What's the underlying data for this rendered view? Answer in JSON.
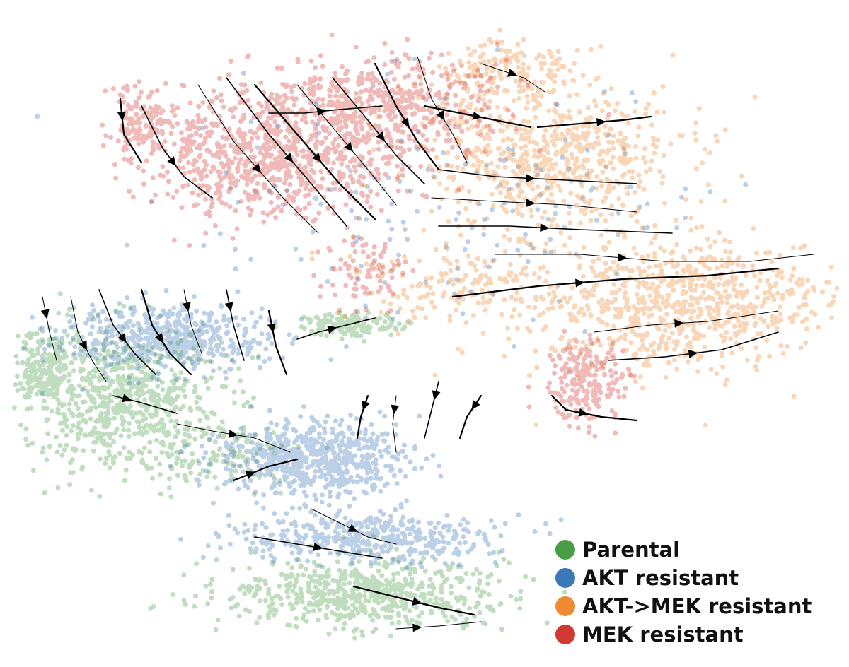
{
  "chart_data": {
    "type": "scatter",
    "subtype": "velocity-streamline embedding",
    "title": "",
    "xlabel": "",
    "ylabel": "",
    "axes_visible": false,
    "grid": false,
    "legend_position": "bottom-right",
    "point_alpha": 0.35,
    "streamlines": {
      "color": "#000000",
      "arrowheads": true
    },
    "series": [
      {
        "name": "Parental",
        "color": "#4a9e47",
        "regions": [
          {
            "label": "lower-left band",
            "center": [
              170,
              560
            ],
            "spread": [
              120,
              80
            ],
            "weight": 0.4
          },
          {
            "label": "bottom band",
            "center": [
              520,
              840
            ],
            "spread": [
              170,
              40
            ],
            "weight": 0.35
          },
          {
            "label": "left tip",
            "center": [
              60,
              520
            ],
            "spread": [
              35,
              40
            ],
            "weight": 0.1
          },
          {
            "label": "bridge",
            "center": [
              500,
              460
            ],
            "spread": [
              60,
              15
            ],
            "weight": 0.08
          },
          {
            "label": "mid strand",
            "center": [
              300,
              640
            ],
            "spread": [
              110,
              40
            ],
            "weight": 0.07
          }
        ]
      },
      {
        "name": "AKT resistant",
        "color": "#3b78b8",
        "regions": [
          {
            "label": "upper-left strip",
            "center": [
              230,
              480
            ],
            "spread": [
              120,
              40
            ],
            "weight": 0.3
          },
          {
            "label": "diagonal strand",
            "center": [
              440,
              650
            ],
            "spread": [
              110,
              45
            ],
            "weight": 0.35
          },
          {
            "label": "lower strand",
            "center": [
              520,
              760
            ],
            "spread": [
              150,
              30
            ],
            "weight": 0.25
          },
          {
            "label": "scattered",
            "center": [
              650,
              300
            ],
            "spread": [
              300,
              150
            ],
            "weight": 0.1
          }
        ]
      },
      {
        "name": "AKT->MEK resistant",
        "color": "#ef8a32",
        "regions": [
          {
            "label": "right lobe",
            "center": [
              960,
              430
            ],
            "spread": [
              170,
              80
            ],
            "weight": 0.45
          },
          {
            "label": "upper right",
            "center": [
              780,
              220
            ],
            "spread": [
              150,
              80
            ],
            "weight": 0.35
          },
          {
            "label": "top right",
            "center": [
              720,
              100
            ],
            "spread": [
              90,
              40
            ],
            "weight": 0.1
          },
          {
            "label": "scattered",
            "center": [
              640,
              400
            ],
            "spread": [
              120,
              60
            ],
            "weight": 0.1
          }
        ]
      },
      {
        "name": "MEK resistant",
        "color": "#d03a33",
        "regions": [
          {
            "label": "upper-left diagonal",
            "center": [
              380,
              220
            ],
            "spread": [
              150,
              70
            ],
            "weight": 0.45
          },
          {
            "label": "top band",
            "center": [
              540,
              150
            ],
            "spread": [
              150,
              60
            ],
            "weight": 0.3
          },
          {
            "label": "left tip",
            "center": [
              200,
              170
            ],
            "spread": [
              40,
              40
            ],
            "weight": 0.08
          },
          {
            "label": "right cluster",
            "center": [
              830,
              540
            ],
            "spread": [
              45,
              50
            ],
            "weight": 0.12
          },
          {
            "label": "central",
            "center": [
              520,
              380
            ],
            "spread": [
              60,
              40
            ],
            "weight": 0.05
          }
        ]
      }
    ]
  }
}
